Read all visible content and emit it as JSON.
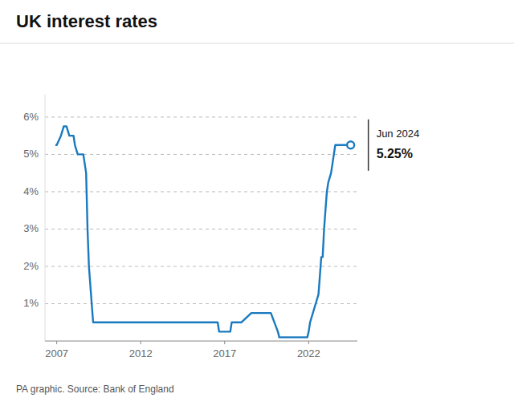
{
  "chart_data": {
    "type": "line",
    "title": "UK interest rates",
    "subtitle": "PA graphic. Source: Bank of England",
    "annotations": [
      "Jun 2024",
      "5.25%"
    ],
    "color": "#1a7abf",
    "grid": true,
    "xlim": [
      2006.3,
      2024.9
    ],
    "xticks": [
      2007,
      2012,
      2017,
      2022
    ],
    "ylim": [
      0,
      6.6
    ],
    "yticks": [
      {
        "value": 1,
        "label": "1%"
      },
      {
        "value": 2,
        "label": "2%"
      },
      {
        "value": 3,
        "label": "3%"
      },
      {
        "value": 4,
        "label": "4%"
      },
      {
        "value": 5,
        "label": "5%"
      },
      {
        "value": 6,
        "label": "6%"
      }
    ],
    "x": [
      2006.917,
      2007.0,
      2007.25,
      2007.417,
      2007.583,
      2007.75,
      2007.917,
      2008.0,
      2008.083,
      2008.25,
      2008.417,
      2008.583,
      2008.75,
      2008.833,
      2008.917,
      2009.0,
      2009.083,
      2009.167,
      2009.25,
      2016.583,
      2016.667,
      2017.333,
      2017.417,
      2017.917,
      2018.0,
      2018.583,
      2018.75,
      2019.75,
      2020.167,
      2020.25,
      2020.333,
      2021.917,
      2021.999,
      2022.083,
      2022.25,
      2022.417,
      2022.583,
      2022.667,
      2022.75,
      2022.833,
      2022.917,
      2022.999,
      2023.083,
      2023.167,
      2023.333,
      2023.5,
      2023.583,
      2024.5
    ],
    "values": [
      5.25,
      5.25,
      5.5,
      5.75,
      5.75,
      5.5,
      5.5,
      5.5,
      5.25,
      5.0,
      5.0,
      5.0,
      4.5,
      3.0,
      2.0,
      1.5,
      1.0,
      0.5,
      0.5,
      0.5,
      0.25,
      0.25,
      0.5,
      0.5,
      0.5,
      0.75,
      0.75,
      0.75,
      0.25,
      0.1,
      0.1,
      0.1,
      0.25,
      0.5,
      0.75,
      1.0,
      1.25,
      1.75,
      2.25,
      2.25,
      3.0,
      3.5,
      4.0,
      4.25,
      4.5,
      5.0,
      5.25,
      5.25
    ]
  }
}
